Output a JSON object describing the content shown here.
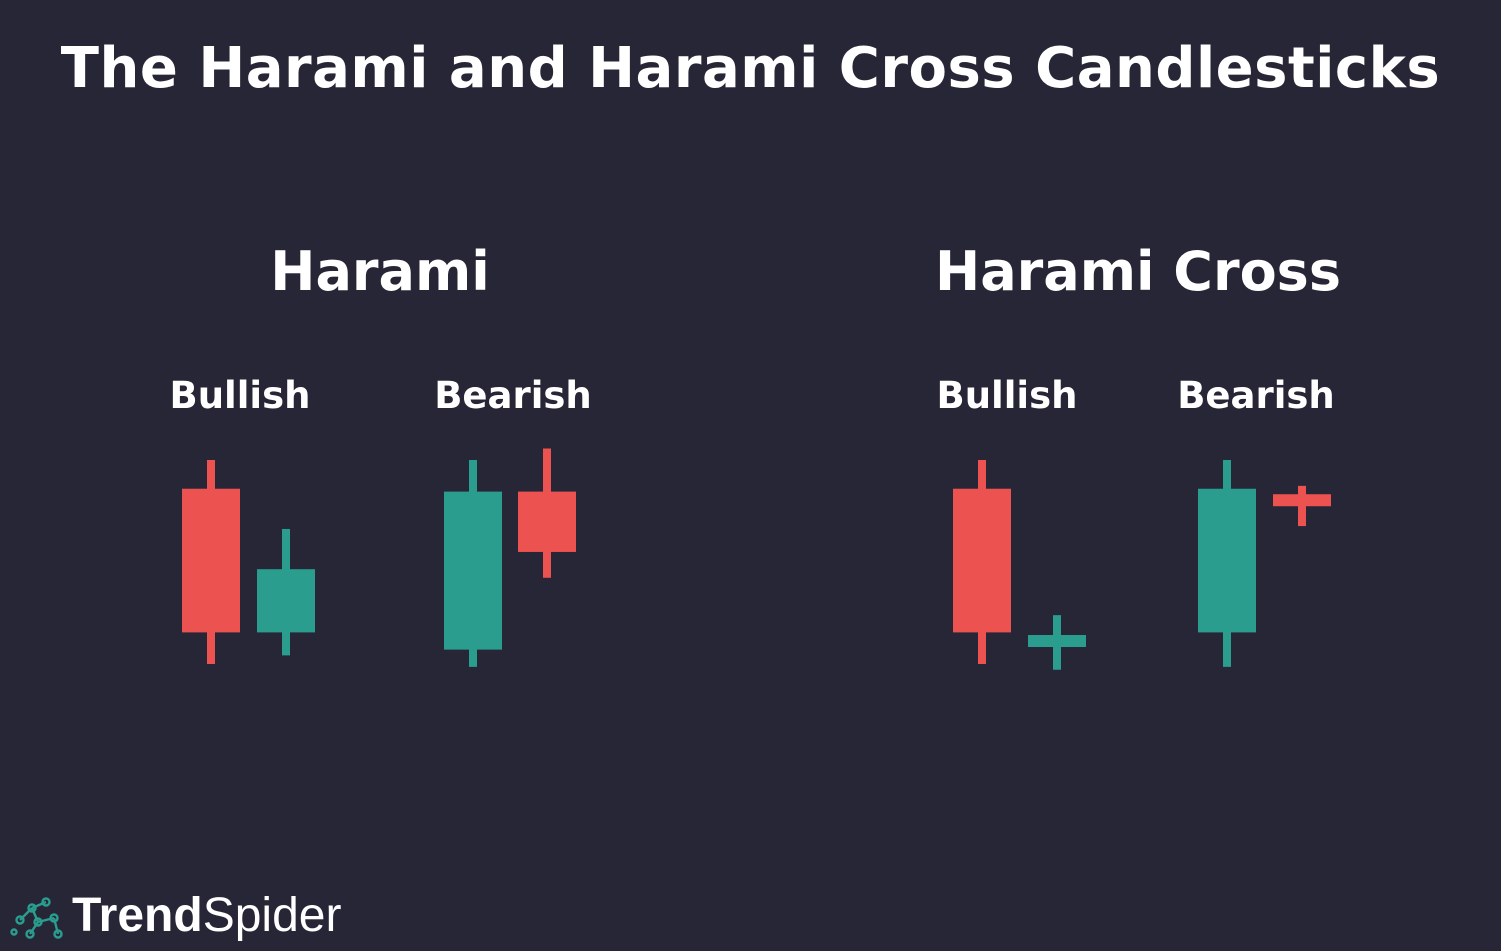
{
  "title": "The Harami and Harami Cross Candlesticks",
  "colors": {
    "background": "#262636",
    "bullish": "#2a9d8f",
    "bearish": "#ec5250",
    "text": "#ffffff"
  },
  "sections": [
    {
      "title": "Harami",
      "patterns": [
        {
          "label": "Bullish",
          "candles": [
            {
              "type": "bearish",
              "high": 100,
              "open": 90,
              "close": 40,
              "low": 29
            },
            {
              "type": "bullish",
              "high": 76,
              "open": 40,
              "close": 62,
              "low": 32
            }
          ]
        },
        {
          "label": "Bearish",
          "candles": [
            {
              "type": "bullish",
              "high": 100,
              "open": 34,
              "close": 89,
              "low": 28
            },
            {
              "type": "bearish",
              "high": 104,
              "open": 89,
              "close": 68,
              "low": 59
            }
          ]
        }
      ]
    },
    {
      "title": "Harami Cross",
      "patterns": [
        {
          "label": "Bullish",
          "candles": [
            {
              "type": "bearish",
              "high": 100,
              "open": 90,
              "close": 40,
              "low": 29
            },
            {
              "type": "bullish",
              "high": 46,
              "open": 37,
              "close": 37,
              "low": 27
            }
          ]
        },
        {
          "label": "Bearish",
          "candles": [
            {
              "type": "bullish",
              "high": 100,
              "open": 40,
              "close": 90,
              "low": 28
            },
            {
              "type": "bearish",
              "high": 91,
              "open": 86,
              "close": 86,
              "low": 77
            }
          ]
        }
      ]
    }
  ],
  "logo": {
    "icon": "spider-network-icon",
    "word_bold": "Trend",
    "word_light": "Spider"
  }
}
